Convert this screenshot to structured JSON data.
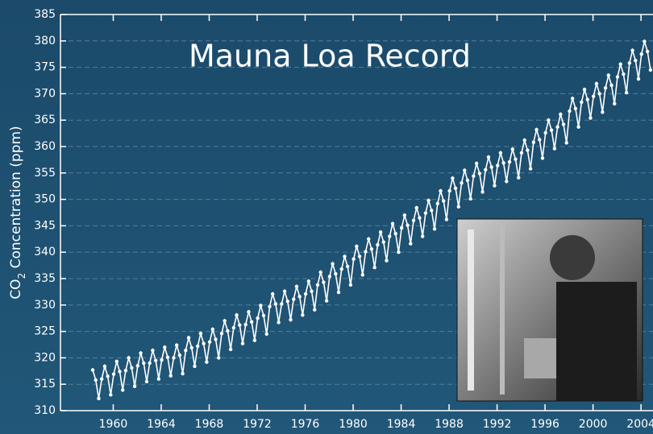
{
  "chart_data": {
    "type": "line",
    "title": "Mauna Loa Record",
    "y_label": {
      "main": "CO",
      "sub": "2",
      "rest": " Concentration (ppm)"
    },
    "color": "#ffffff",
    "grid": true,
    "xlim": [
      1955.6,
      2005
    ],
    "ylim": [
      310,
      385
    ],
    "xticks": [
      1960,
      1964,
      1968,
      1972,
      1976,
      1980,
      1984,
      1988,
      1992,
      1996,
      2000,
      2004
    ],
    "yticks": [
      310,
      315,
      320,
      325,
      330,
      335,
      340,
      345,
      350,
      355,
      360,
      365,
      370,
      375,
      380,
      385
    ],
    "x": [
      1958.29,
      1958.54,
      1958.79,
      1959.04,
      1959.29,
      1959.54,
      1959.79,
      1960.04,
      1960.29,
      1960.54,
      1960.79,
      1961.04,
      1961.29,
      1961.54,
      1961.79,
      1962.04,
      1962.29,
      1962.54,
      1962.79,
      1963.04,
      1963.29,
      1963.54,
      1963.79,
      1964.04,
      1964.29,
      1964.54,
      1964.79,
      1965.04,
      1965.29,
      1965.54,
      1965.79,
      1966.04,
      1966.29,
      1966.54,
      1966.79,
      1967.04,
      1967.29,
      1967.54,
      1967.79,
      1968.04,
      1968.29,
      1968.54,
      1968.79,
      1969.04,
      1969.29,
      1969.54,
      1969.79,
      1970.04,
      1970.29,
      1970.54,
      1970.79,
      1971.04,
      1971.29,
      1971.54,
      1971.79,
      1972.04,
      1972.29,
      1972.54,
      1972.79,
      1973.04,
      1973.29,
      1973.54,
      1973.79,
      1974.04,
      1974.29,
      1974.54,
      1974.79,
      1975.04,
      1975.29,
      1975.54,
      1975.79,
      1976.04,
      1976.29,
      1976.54,
      1976.79,
      1977.04,
      1977.29,
      1977.54,
      1977.79,
      1978.04,
      1978.29,
      1978.54,
      1978.79,
      1979.04,
      1979.29,
      1979.54,
      1979.79,
      1980.04,
      1980.29,
      1980.54,
      1980.79,
      1981.04,
      1981.29,
      1981.54,
      1981.79,
      1982.04,
      1982.29,
      1982.54,
      1982.79,
      1983.04,
      1983.29,
      1983.54,
      1983.79,
      1984.04,
      1984.29,
      1984.54,
      1984.79,
      1985.04,
      1985.29,
      1985.54,
      1985.79,
      1986.04,
      1986.29,
      1986.54,
      1986.79,
      1987.04,
      1987.29,
      1987.54,
      1987.79,
      1988.04,
      1988.29,
      1988.54,
      1988.79,
      1989.04,
      1989.29,
      1989.54,
      1989.79,
      1990.04,
      1990.29,
      1990.54,
      1990.79,
      1991.04,
      1991.29,
      1991.54,
      1991.79,
      1992.04,
      1992.29,
      1992.54,
      1992.79,
      1993.04,
      1993.29,
      1993.54,
      1993.79,
      1994.04,
      1994.29,
      1994.54,
      1994.79,
      1995.04,
      1995.29,
      1995.54,
      1995.79,
      1996.04,
      1996.29,
      1996.54,
      1996.79,
      1997.04,
      1997.29,
      1997.54,
      1997.79,
      1998.04,
      1998.29,
      1998.54,
      1998.79,
      1999.04,
      1999.29,
      1999.54,
      1999.79,
      2000.04,
      2000.29,
      2000.54,
      2000.79,
      2001.04,
      2001.29,
      2001.54,
      2001.79,
      2002.04,
      2002.29,
      2002.54,
      2002.79,
      2003.04,
      2003.29,
      2003.54,
      2003.79,
      2004.04,
      2004.29,
      2004.54,
      2004.79
    ],
    "values": [
      317.7,
      315.8,
      312.3,
      316.0,
      318.4,
      316.5,
      313.0,
      316.9,
      319.3,
      317.4,
      313.9,
      317.6,
      320.0,
      318.1,
      314.6,
      318.5,
      320.9,
      319.0,
      315.5,
      319.0,
      321.4,
      319.5,
      316.0,
      319.6,
      322.0,
      320.1,
      316.6,
      320.0,
      322.4,
      320.5,
      317.0,
      321.4,
      323.8,
      321.9,
      318.4,
      322.2,
      324.6,
      322.7,
      319.2,
      323.0,
      325.4,
      323.5,
      320.0,
      324.6,
      327.0,
      325.1,
      321.6,
      325.7,
      328.1,
      326.2,
      322.7,
      326.3,
      328.7,
      326.8,
      323.3,
      327.5,
      329.9,
      328.0,
      324.5,
      329.7,
      332.1,
      330.2,
      326.7,
      330.2,
      332.6,
      330.7,
      327.2,
      331.1,
      333.5,
      331.6,
      328.1,
      332.1,
      334.5,
      332.6,
      329.1,
      333.8,
      336.2,
      334.3,
      330.8,
      335.4,
      337.8,
      335.9,
      332.4,
      336.8,
      339.2,
      337.3,
      333.8,
      338.7,
      341.1,
      339.2,
      335.7,
      340.1,
      342.5,
      340.6,
      337.1,
      341.4,
      343.8,
      341.9,
      338.4,
      343.0,
      345.4,
      343.5,
      340.0,
      344.6,
      347.0,
      345.1,
      341.6,
      346.0,
      348.4,
      346.5,
      343.0,
      347.4,
      349.8,
      347.9,
      344.4,
      349.2,
      351.6,
      349.7,
      346.2,
      351.6,
      354.0,
      352.1,
      348.6,
      353.1,
      355.5,
      353.6,
      350.1,
      354.4,
      356.8,
      354.9,
      351.4,
      355.6,
      358.0,
      356.1,
      352.6,
      356.4,
      358.8,
      356.9,
      353.4,
      357.1,
      359.5,
      357.6,
      354.1,
      358.8,
      361.2,
      359.3,
      355.8,
      360.8,
      363.2,
      361.3,
      357.8,
      362.6,
      365.0,
      363.1,
      359.6,
      363.7,
      366.1,
      364.2,
      360.7,
      366.7,
      369.1,
      367.2,
      363.7,
      368.4,
      370.8,
      368.9,
      365.4,
      369.5,
      371.9,
      370.0,
      366.5,
      371.1,
      373.5,
      371.6,
      368.1,
      373.2,
      375.6,
      373.7,
      370.2,
      375.8,
      378.2,
      376.3,
      372.8,
      377.5,
      379.9,
      378.0,
      374.5
    ]
  }
}
